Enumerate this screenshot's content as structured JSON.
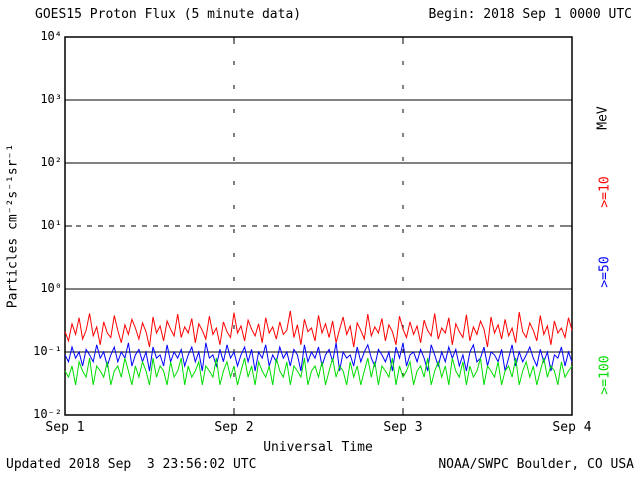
{
  "header": {
    "title": "GOES15 Proton Flux (5 minute data)",
    "begin_label": "Begin: 2018 Sep 1 0000 UTC"
  },
  "footer": {
    "updated": "Updated 2018 Sep  3 23:56:02 UTC",
    "source": "NOAA/SWPC Boulder, CO USA"
  },
  "axes": {
    "y_label": "Particles cm⁻²s⁻¹sr⁻¹",
    "x_label": "Universal Time",
    "right_unit_label": "MeV",
    "y_tick_labels": [
      "10⁴",
      "10³",
      "10²",
      "10¹",
      "10⁰",
      "10⁻¹",
      "10⁻²"
    ],
    "x_tick_labels": [
      "Sep 1",
      "Sep 2",
      "Sep 3",
      "Sep 4"
    ]
  },
  "chart_data": {
    "type": "line",
    "title": "GOES15 Proton Flux (5 minute data)",
    "xlabel": "Universal Time",
    "ylabel": "Particles cm⁻²s⁻¹sr⁻¹",
    "x_start": "2018 Sep 1 0000 UTC",
    "x_end": "2018 Sep 4 0000 UTC",
    "x_tick_labels": [
      "Sep 1",
      "Sep 2",
      "Sep 3",
      "Sep 4"
    ],
    "y_scale": "log",
    "ylim": [
      0.01,
      10000
    ],
    "grid": {
      "solid_decades": [
        1000,
        100,
        1,
        0.1
      ],
      "dashed_decades": [
        10
      ],
      "vertical_dashed_fractions": [
        0.3333,
        0.6667
      ]
    },
    "legend_position": "right-rotated",
    "series": [
      {
        "name": ">=10",
        "unit": "MeV",
        "color": "#ff0000",
        "values": [
          0.21,
          0.15,
          0.28,
          0.19,
          0.35,
          0.16,
          0.22,
          0.41,
          0.18,
          0.25,
          0.13,
          0.3,
          0.2,
          0.17,
          0.38,
          0.22,
          0.14,
          0.27,
          0.19,
          0.33,
          0.24,
          0.16,
          0.29,
          0.21,
          0.12,
          0.36,
          0.2,
          0.26,
          0.15,
          0.31,
          0.23,
          0.18,
          0.4,
          0.17,
          0.25,
          0.2,
          0.34,
          0.14,
          0.28,
          0.22,
          0.16,
          0.37,
          0.19,
          0.24,
          0.13,
          0.3,
          0.21,
          0.17,
          0.42,
          0.2,
          0.26,
          0.15,
          0.32,
          0.23,
          0.18,
          0.28,
          0.14,
          0.35,
          0.2,
          0.25,
          0.16,
          0.3,
          0.19,
          0.22,
          0.45,
          0.17,
          0.27,
          0.13,
          0.33,
          0.21,
          0.24,
          0.15,
          0.38,
          0.2,
          0.28,
          0.17,
          0.31,
          0.14,
          0.23,
          0.36,
          0.19,
          0.26,
          0.12,
          0.29,
          0.22,
          0.16,
          0.4,
          0.18,
          0.25,
          0.2,
          0.34,
          0.15,
          0.27,
          0.21,
          0.13,
          0.37,
          0.23,
          0.17,
          0.3,
          0.19,
          0.26,
          0.14,
          0.32,
          0.22,
          0.18,
          0.41,
          0.16,
          0.24,
          0.2,
          0.35,
          0.13,
          0.28,
          0.21,
          0.17,
          0.39,
          0.15,
          0.25,
          0.19,
          0.31,
          0.23,
          0.12,
          0.36,
          0.2,
          0.27,
          0.16,
          0.33,
          0.18,
          0.24,
          0.14,
          0.43,
          0.21,
          0.17,
          0.29,
          0.22,
          0.15,
          0.38,
          0.19,
          0.26,
          0.13,
          0.31,
          0.2,
          0.24,
          0.17,
          0.35,
          0.22
        ]
      },
      {
        "name": ">=50",
        "unit": "MeV",
        "color": "#0000ff",
        "values": [
          0.09,
          0.07,
          0.12,
          0.08,
          0.1,
          0.06,
          0.11,
          0.09,
          0.07,
          0.13,
          0.08,
          0.1,
          0.06,
          0.09,
          0.12,
          0.07,
          0.1,
          0.08,
          0.14,
          0.06,
          0.09,
          0.11,
          0.07,
          0.1,
          0.05,
          0.12,
          0.08,
          0.09,
          0.06,
          0.13,
          0.07,
          0.1,
          0.08,
          0.11,
          0.06,
          0.09,
          0.12,
          0.07,
          0.1,
          0.05,
          0.14,
          0.08,
          0.09,
          0.06,
          0.11,
          0.07,
          0.13,
          0.08,
          0.1,
          0.06,
          0.09,
          0.12,
          0.07,
          0.11,
          0.05,
          0.1,
          0.08,
          0.13,
          0.06,
          0.09,
          0.07,
          0.12,
          0.08,
          0.1,
          0.06,
          0.11,
          0.09,
          0.05,
          0.13,
          0.07,
          0.1,
          0.08,
          0.12,
          0.06,
          0.09,
          0.11,
          0.07,
          0.14,
          0.05,
          0.1,
          0.08,
          0.09,
          0.06,
          0.12,
          0.07,
          0.1,
          0.13,
          0.08,
          0.06,
          0.11,
          0.09,
          0.07,
          0.1,
          0.05,
          0.12,
          0.08,
          0.14,
          0.06,
          0.09,
          0.1,
          0.07,
          0.11,
          0.08,
          0.05,
          0.13,
          0.09,
          0.06,
          0.1,
          0.07,
          0.12,
          0.08,
          0.11,
          0.06,
          0.09,
          0.05,
          0.1,
          0.13,
          0.07,
          0.08,
          0.12,
          0.06,
          0.1,
          0.09,
          0.07,
          0.11,
          0.05,
          0.08,
          0.13,
          0.06,
          0.1,
          0.07,
          0.09,
          0.12,
          0.08,
          0.06,
          0.11,
          0.07,
          0.1,
          0.05,
          0.09,
          0.08,
          0.12,
          0.06,
          0.1,
          0.07
        ]
      },
      {
        "name": ">=100",
        "unit": "MeV",
        "color": "#00dd00",
        "values": [
          0.05,
          0.04,
          0.06,
          0.03,
          0.07,
          0.05,
          0.04,
          0.08,
          0.03,
          0.06,
          0.05,
          0.04,
          0.07,
          0.03,
          0.05,
          0.06,
          0.04,
          0.08,
          0.05,
          0.03,
          0.06,
          0.04,
          0.07,
          0.05,
          0.03,
          0.08,
          0.04,
          0.06,
          0.05,
          0.03,
          0.07,
          0.04,
          0.05,
          0.08,
          0.03,
          0.06,
          0.04,
          0.05,
          0.07,
          0.03,
          0.06,
          0.05,
          0.04,
          0.08,
          0.03,
          0.05,
          0.07,
          0.04,
          0.06,
          0.03,
          0.05,
          0.08,
          0.04,
          0.06,
          0.03,
          0.07,
          0.05,
          0.04,
          0.06,
          0.03,
          0.08,
          0.05,
          0.04,
          0.07,
          0.03,
          0.06,
          0.05,
          0.04,
          0.08,
          0.03,
          0.05,
          0.06,
          0.04,
          0.07,
          0.03,
          0.05,
          0.08,
          0.04,
          0.06,
          0.05,
          0.03,
          0.07,
          0.04,
          0.06,
          0.03,
          0.05,
          0.08,
          0.04,
          0.07,
          0.03,
          0.06,
          0.05,
          0.04,
          0.08,
          0.03,
          0.06,
          0.04,
          0.05,
          0.07,
          0.03,
          0.05,
          0.06,
          0.04,
          0.08,
          0.03,
          0.05,
          0.07,
          0.04,
          0.06,
          0.03,
          0.08,
          0.05,
          0.04,
          0.07,
          0.03,
          0.06,
          0.04,
          0.05,
          0.08,
          0.03,
          0.06,
          0.05,
          0.04,
          0.07,
          0.03,
          0.05,
          0.06,
          0.04,
          0.08,
          0.03,
          0.05,
          0.07,
          0.04,
          0.06,
          0.03,
          0.05,
          0.08,
          0.04,
          0.06,
          0.05,
          0.03,
          0.07,
          0.04,
          0.05,
          0.06
        ]
      }
    ]
  }
}
